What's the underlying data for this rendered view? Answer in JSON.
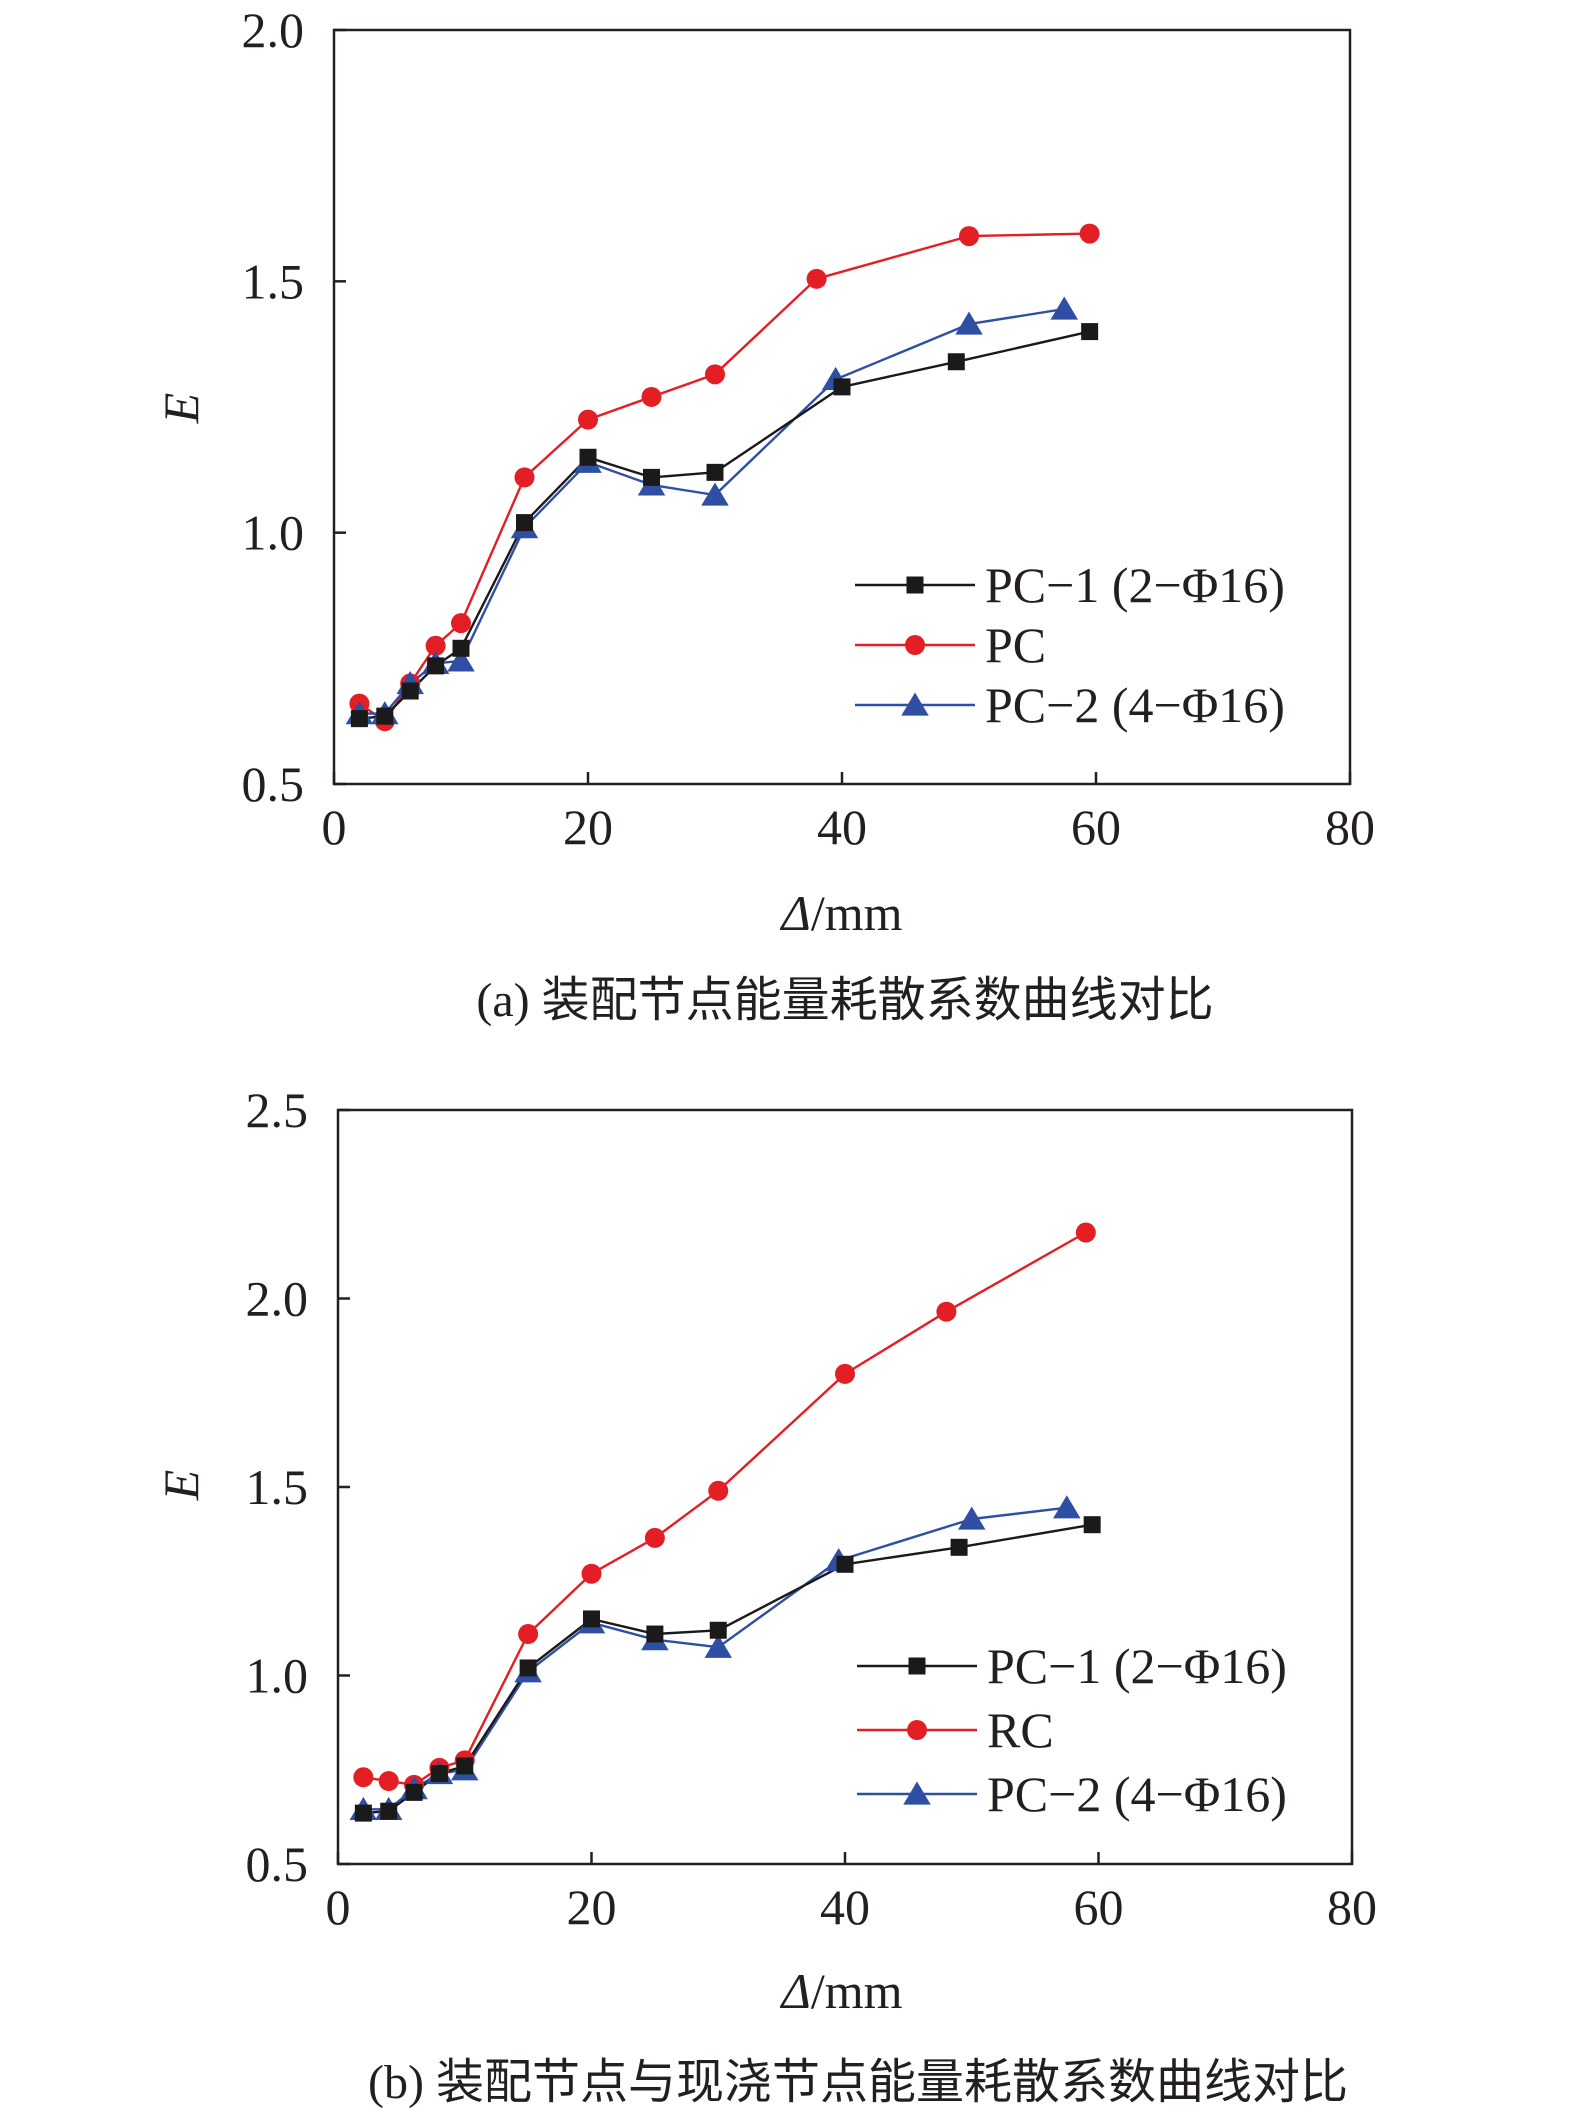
{
  "chart_data": [
    {
      "type": "line",
      "caption": "(a) 装配节点能量耗散系数曲线对比",
      "xlabel_italic": "Δ",
      "xlabel_unit": "/mm",
      "ylabel": "E",
      "xlim": [
        0,
        80
      ],
      "ylim": [
        0.5,
        2.0
      ],
      "xticks": [
        0,
        20,
        40,
        60,
        80
      ],
      "yticks": [
        0.5,
        1.0,
        1.5,
        2.0
      ],
      "xtick_labels": [
        "0",
        "20",
        "40",
        "60",
        "80"
      ],
      "ytick_labels": [
        "0.5",
        "1.0",
        "1.5",
        "2.0"
      ],
      "series": [
        {
          "name": "PC−1 (2−Φ16)",
          "color": "#1a1a1a",
          "marker": "square",
          "x": [
            2,
            4,
            6,
            8,
            10,
            15,
            20,
            25,
            30,
            40,
            49,
            59.5
          ],
          "y": [
            0.63,
            0.635,
            0.685,
            0.735,
            0.77,
            1.02,
            1.15,
            1.11,
            1.12,
            1.29,
            1.34,
            1.4
          ]
        },
        {
          "name": "PC",
          "color": "#e31e24",
          "marker": "circle",
          "x": [
            2,
            4,
            6,
            8,
            10,
            15,
            20,
            25,
            30,
            38,
            50,
            59.5
          ],
          "y": [
            0.66,
            0.625,
            0.7,
            0.775,
            0.82,
            1.11,
            1.225,
            1.27,
            1.315,
            1.505,
            1.59,
            1.595
          ]
        },
        {
          "name": "PC−2 (4−Φ16)",
          "color": "#2e4fa3",
          "marker": "triangle",
          "x": [
            2,
            4,
            6,
            8,
            10,
            15,
            20,
            25,
            30,
            39.5,
            50,
            57.5
          ],
          "y": [
            0.64,
            0.64,
            0.7,
            0.74,
            0.745,
            1.01,
            1.14,
            1.095,
            1.075,
            1.305,
            1.415,
            1.445
          ]
        }
      ]
    },
    {
      "type": "line",
      "caption": "(b) 装配节点与现浇节点能量耗散系数曲线对比",
      "xlabel_italic": "Δ",
      "xlabel_unit": "/mm",
      "ylabel": "E",
      "xlim": [
        0,
        80
      ],
      "ylim": [
        0.5,
        2.5
      ],
      "xticks": [
        0,
        20,
        40,
        60,
        80
      ],
      "yticks": [
        0.5,
        1.0,
        1.5,
        2.0,
        2.5
      ],
      "xtick_labels": [
        "0",
        "20",
        "40",
        "60",
        "80"
      ],
      "ytick_labels": [
        "0.5",
        "1.0",
        "1.5",
        "2.0",
        "2.5"
      ],
      "series": [
        {
          "name": "PC−1 (2−Φ16)",
          "color": "#1a1a1a",
          "marker": "square",
          "x": [
            2,
            4,
            6,
            8,
            10,
            15,
            20,
            25,
            30,
            40,
            49,
            59.5
          ],
          "y": [
            0.635,
            0.64,
            0.69,
            0.74,
            0.76,
            1.02,
            1.15,
            1.11,
            1.12,
            1.295,
            1.34,
            1.4
          ]
        },
        {
          "name": "RC",
          "color": "#e31e24",
          "marker": "circle",
          "x": [
            2,
            4,
            6,
            8,
            10,
            15,
            20,
            25,
            30,
            40,
            48,
            59
          ],
          "y": [
            0.73,
            0.72,
            0.71,
            0.755,
            0.775,
            1.11,
            1.27,
            1.365,
            1.49,
            1.8,
            1.965,
            2.175
          ]
        },
        {
          "name": "PC−2 (4−Φ16)",
          "color": "#2e4fa3",
          "marker": "triangle",
          "x": [
            2,
            4,
            6,
            8,
            10,
            15,
            20,
            25,
            30,
            39.5,
            50,
            57.5
          ],
          "y": [
            0.645,
            0.645,
            0.7,
            0.74,
            0.75,
            1.01,
            1.14,
            1.095,
            1.075,
            1.305,
            1.415,
            1.445
          ]
        }
      ]
    }
  ]
}
